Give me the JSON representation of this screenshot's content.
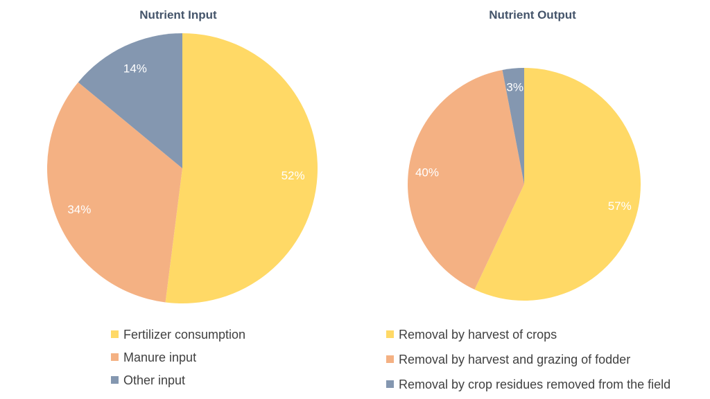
{
  "chart_data": [
    {
      "type": "pie",
      "title": "Nutrient Input",
      "categories": [
        "Fertilizer consumption",
        "Manure input",
        "Other input"
      ],
      "values": [
        52,
        34,
        14
      ],
      "value_labels": [
        "52%",
        "34%",
        "14%"
      ],
      "colors": [
        "#ffd966",
        "#f4b183",
        "#8497b0"
      ],
      "legend_position": "bottom"
    },
    {
      "type": "pie",
      "title": "Nutrient Output",
      "categories": [
        "Removal by harvest of crops",
        "Removal by harvest and grazing of fodder",
        "Removal by crop residues removed from the field"
      ],
      "values": [
        57,
        40,
        3
      ],
      "value_labels": [
        "57%",
        "40%",
        "3%"
      ],
      "colors": [
        "#ffd966",
        "#f4b183",
        "#8497b0"
      ],
      "legend_position": "bottom"
    }
  ]
}
